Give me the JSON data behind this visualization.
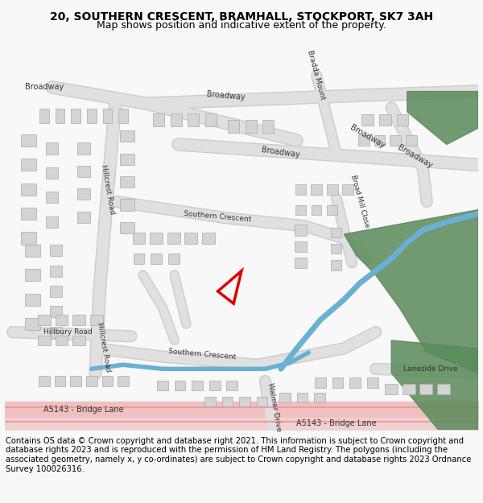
{
  "title_line1": "20, SOUTHERN CRESCENT, BRAMHALL, STOCKPORT, SK7 3AH",
  "title_line2": "Map shows position and indicative extent of the property.",
  "footer_text": "Contains OS data © Crown copyright and database right 2021. This information is subject to Crown copyright and database rights 2023 and is reproduced with the permission of HM Land Registry. The polygons (including the associated geometry, namely x, y co-ordinates) are subject to Crown copyright and database rights 2023 Ordnance Survey 100026316.",
  "bg_color": "#f8f8f8",
  "map_bg": "#ffffff",
  "title_fontsize": 10,
  "subtitle_fontsize": 9,
  "footer_fontsize": 7.2,
  "road_color": "#e8e8e8",
  "road_stroke": "#cccccc",
  "green_color": "#5a8a5a",
  "water_color": "#6ab0d4",
  "road_label_color": "#333333",
  "building_color": "#d4d4d4",
  "building_stroke": "#aaaaaa",
  "red_color": "#dd0000"
}
